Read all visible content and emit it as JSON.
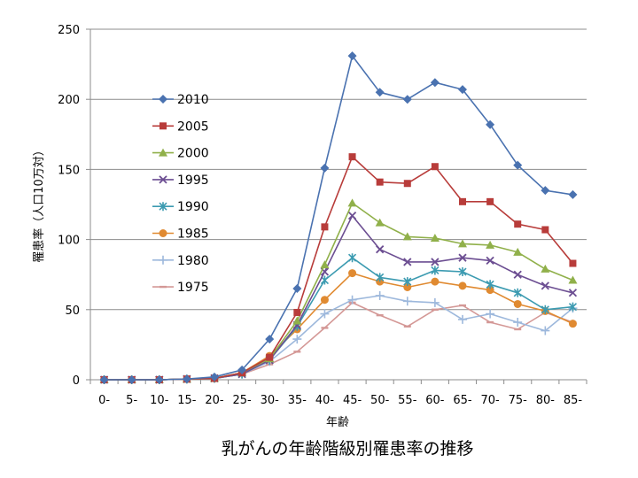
{
  "chart_data": {
    "type": "line",
    "title": "乳がんの年齢階級別罹患率の推移",
    "xlabel": "年齢",
    "ylabel": "罹患率（人口10万対）",
    "ylim": [
      0,
      250
    ],
    "yticks": [
      0,
      50,
      100,
      150,
      200,
      250
    ],
    "grid": "horizontal",
    "legend_position": "upper-left inside",
    "categories": [
      "0-",
      "5-",
      "10-",
      "15-",
      "20-",
      "25-",
      "30-",
      "35-",
      "40-",
      "45-",
      "50-",
      "55-",
      "60-",
      "65-",
      "70-",
      "75-",
      "80-",
      "85-"
    ],
    "series": [
      {
        "name": "2010",
        "color": "#4a72b0",
        "marker": "diamond",
        "values": [
          0,
          0,
          0,
          0.5,
          2,
          7,
          29,
          65,
          151,
          231,
          205,
          200,
          212,
          207,
          182,
          153,
          135,
          132
        ]
      },
      {
        "name": "2005",
        "color": "#b83c3a",
        "marker": "square",
        "values": [
          0,
          0,
          0,
          0.5,
          1,
          5,
          16,
          48,
          109,
          159,
          141,
          140,
          152,
          127,
          127,
          111,
          107,
          83
        ]
      },
      {
        "name": "2000",
        "color": "#90b04a",
        "marker": "triangle",
        "values": [
          0,
          0,
          0,
          0.5,
          1,
          5,
          15,
          42,
          82,
          126,
          112,
          102,
          101,
          97,
          96,
          91,
          79,
          71
        ]
      },
      {
        "name": "1995",
        "color": "#6c4e92",
        "marker": "x",
        "values": [
          0,
          0,
          0,
          0.5,
          1,
          4,
          14,
          39,
          77,
          117,
          93,
          84,
          84,
          87,
          85,
          75,
          67,
          62
        ]
      },
      {
        "name": "1990",
        "color": "#3c9bb1",
        "marker": "asterisk",
        "values": [
          0,
          0,
          0,
          0.5,
          1,
          4,
          14,
          38,
          71,
          87,
          73,
          70,
          78,
          77,
          68,
          62,
          50,
          52
        ]
      },
      {
        "name": "1985",
        "color": "#e08a31",
        "marker": "circle",
        "values": [
          0,
          0,
          0,
          0.5,
          1,
          5,
          17,
          36,
          57,
          76,
          70,
          66,
          70,
          67,
          64,
          54,
          49,
          40
        ]
      },
      {
        "name": "1980",
        "color": "#9db8dc",
        "marker": "plus",
        "values": [
          0,
          0,
          0,
          0.5,
          1,
          4,
          13,
          29,
          47,
          57,
          60,
          56,
          55,
          43,
          47,
          41,
          35,
          51
        ]
      },
      {
        "name": "1975",
        "color": "#d49896",
        "marker": "dash",
        "values": [
          0,
          0,
          0,
          0.5,
          1,
          4,
          11,
          20,
          37,
          55,
          46,
          38,
          50,
          53,
          41,
          36,
          48,
          41
        ]
      }
    ]
  }
}
